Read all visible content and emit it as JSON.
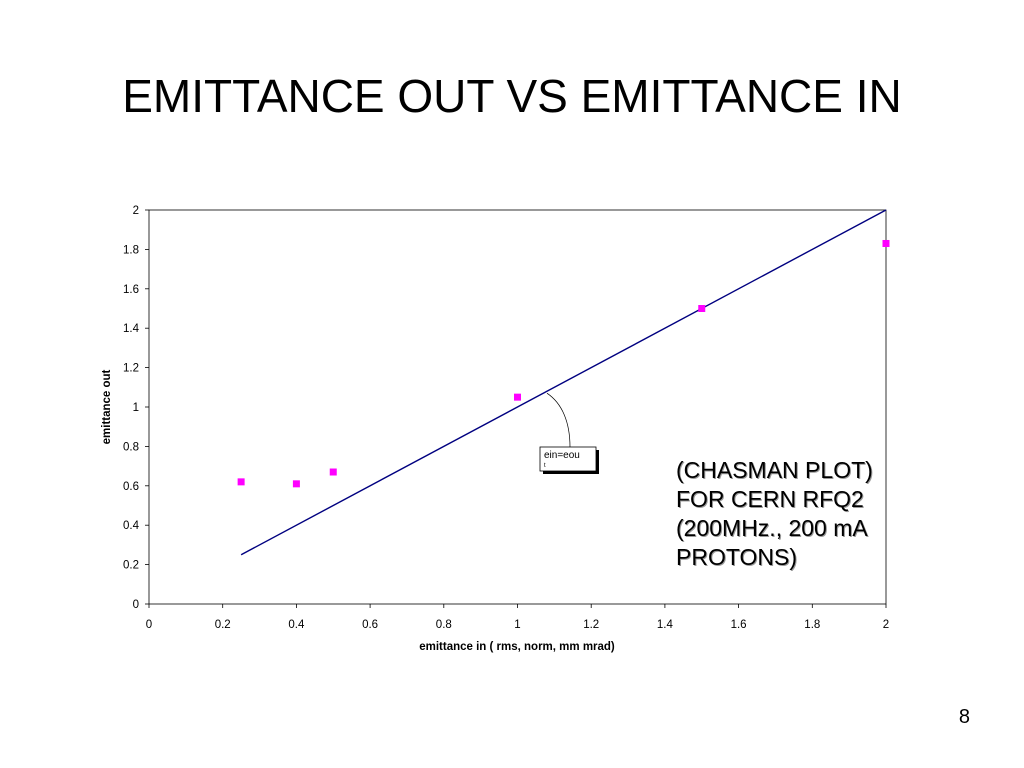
{
  "slide": {
    "title": "EMITTANCE OUT VS EMITTANCE IN",
    "note_lines": [
      "(CHASMAN PLOT)",
      "FOR CERN RFQ2",
      "(200MHz., 200 mA",
      "PROTONS)"
    ],
    "page_number": "8"
  },
  "chart_data": {
    "type": "scatter",
    "title": "",
    "xlabel": "emittance in ( rms, norm, mm mrad)",
    "ylabel": "emittance out",
    "xlim": [
      0,
      2
    ],
    "ylim": [
      0,
      2
    ],
    "x_ticks": [
      "0",
      "0.2",
      "0.4",
      "0.6",
      "0.8",
      "1",
      "1.2",
      "1.4",
      "1.6",
      "1.8",
      "2"
    ],
    "y_ticks": [
      "0",
      "0.2",
      "0.4",
      "0.6",
      "0.8",
      "1",
      "1.2",
      "1.4",
      "1.6",
      "1.8",
      "2"
    ],
    "grid": false,
    "series": [
      {
        "type": "scatter",
        "marker": "square",
        "color": "#ff00ff",
        "points": [
          {
            "x": 0.25,
            "y": 0.62
          },
          {
            "x": 0.4,
            "y": 0.61
          },
          {
            "x": 0.5,
            "y": 0.67
          },
          {
            "x": 1.0,
            "y": 1.05
          },
          {
            "x": 1.5,
            "y": 1.5
          },
          {
            "x": 2.0,
            "y": 1.83
          }
        ]
      },
      {
        "type": "line",
        "color": "#000080",
        "points": [
          {
            "x": 0.25,
            "y": 0.25
          },
          {
            "x": 2.0,
            "y": 2.0
          }
        ]
      }
    ],
    "annotations": [
      {
        "text": "ein=eou",
        "sub": "t",
        "points_to": {
          "x": 1.08,
          "y": 1.07
        }
      }
    ]
  }
}
